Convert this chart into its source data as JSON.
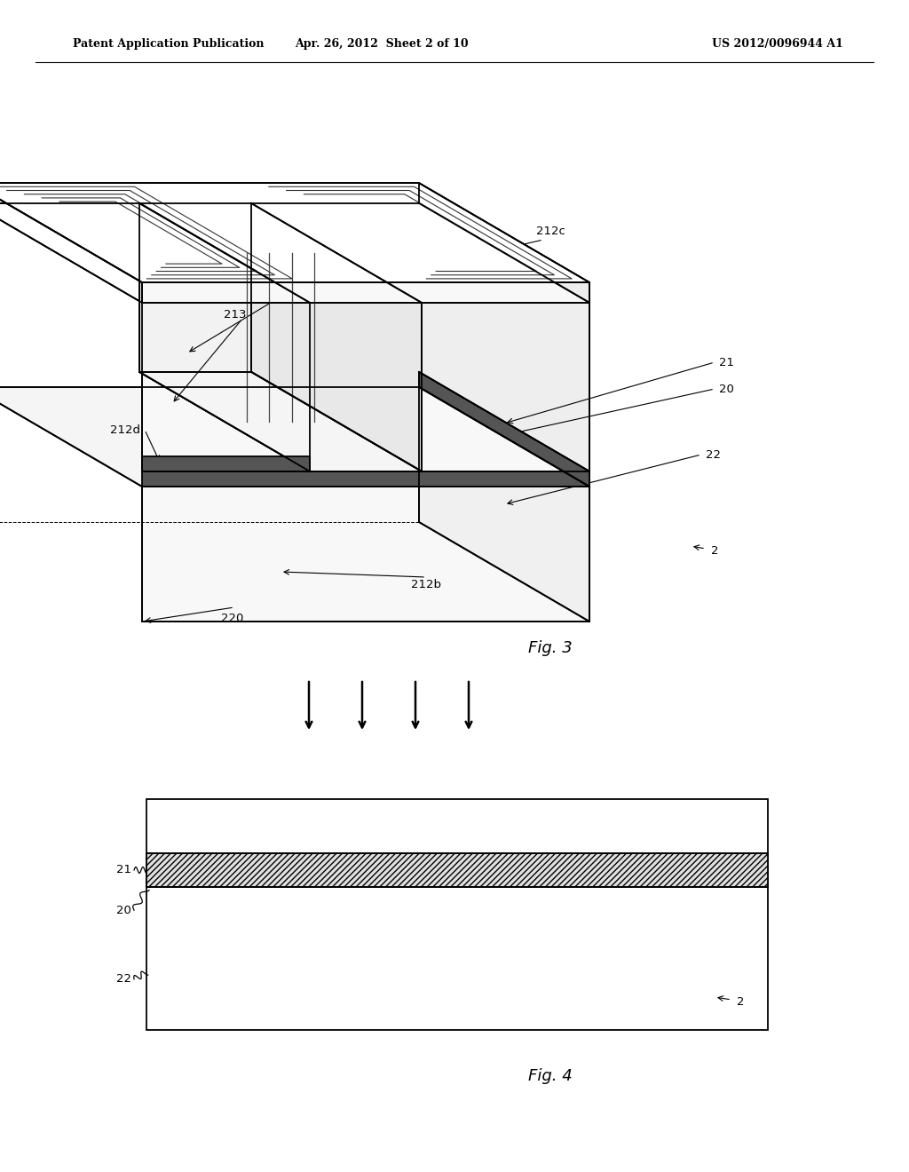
{
  "bg_color": "#ffffff",
  "header_left": "Patent Application Publication",
  "header_center": "Apr. 26, 2012  Sheet 2 of 10",
  "header_right": "US 2012/0096944 A1",
  "fig3_label": "Fig. 3",
  "fig4_label": "Fig. 4",
  "line_color": "#000000"
}
